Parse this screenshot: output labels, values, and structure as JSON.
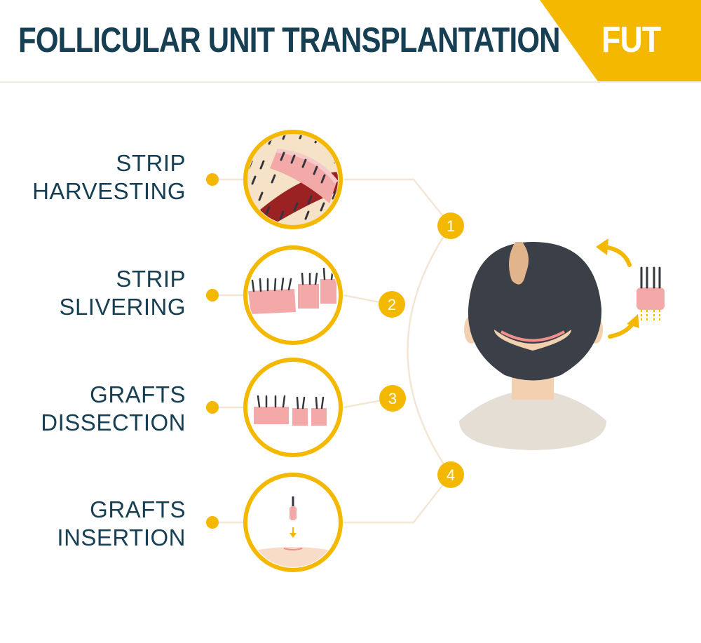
{
  "header": {
    "title": "FOLLICULAR UNIT TRANSPLANTATION",
    "badge": "FUT"
  },
  "steps": [
    {
      "number": "1",
      "line1": "STRIP",
      "line2": "HARVESTING"
    },
    {
      "number": "2",
      "line1": "STRIP",
      "line2": "SLIVERING"
    },
    {
      "number": "3",
      "line1": "GRAFTS",
      "line2": "DISSECTION"
    },
    {
      "number": "4",
      "line1": "GRAFTS",
      "line2": "INSERTION"
    }
  ],
  "colors": {
    "accent": "#f5b800",
    "title": "#173f54",
    "connector": "#f3e6d6",
    "hair": "#3b3f48",
    "skin": "#f2a9a8"
  }
}
